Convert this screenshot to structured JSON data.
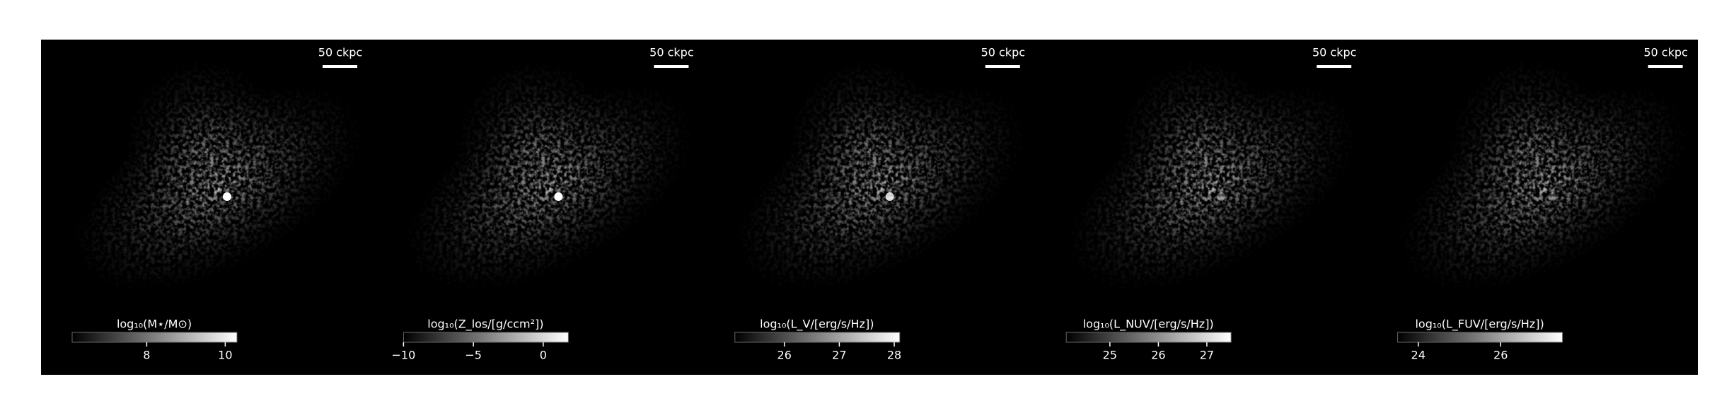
{
  "chart_data": [
    {
      "type": "image",
      "scalebar_label": "50 ckpc",
      "colorbar": {
        "label": "log₁₀(M⋆/M⊙)",
        "lim": [
          6.1,
          10.3
        ],
        "ticks": [
          8,
          10
        ]
      }
    },
    {
      "type": "image",
      "scalebar_label": "50 ckpc",
      "colorbar": {
        "label": "log₁₀(Z_los/[g/ccm²])",
        "lim": [
          -10,
          1.8
        ],
        "ticks": [
          {
            "value": -10,
            "label": "−10"
          },
          {
            "value": -5,
            "label": "−5"
          },
          0
        ]
      }
    },
    {
      "type": "image",
      "scalebar_label": "50 ckpc",
      "colorbar": {
        "label": "log₁₀(L_V/[erg/s/Hz])",
        "lim": [
          25.1,
          28.1
        ],
        "ticks": [
          26,
          27,
          28
        ]
      }
    },
    {
      "type": "image",
      "scalebar_label": "50 ckpc",
      "colorbar": {
        "label": "log₁₀(L_NUV/[erg/s/Hz])",
        "lim": [
          24.1,
          27.5
        ],
        "ticks": [
          25,
          26,
          27
        ]
      }
    },
    {
      "type": "image",
      "scalebar_label": "50 ckpc",
      "colorbar": {
        "label": "log₁₀(L_FUV/[erg/s/Hz])",
        "lim": [
          23.5,
          27.5
        ],
        "ticks": [
          24,
          26
        ]
      }
    }
  ]
}
